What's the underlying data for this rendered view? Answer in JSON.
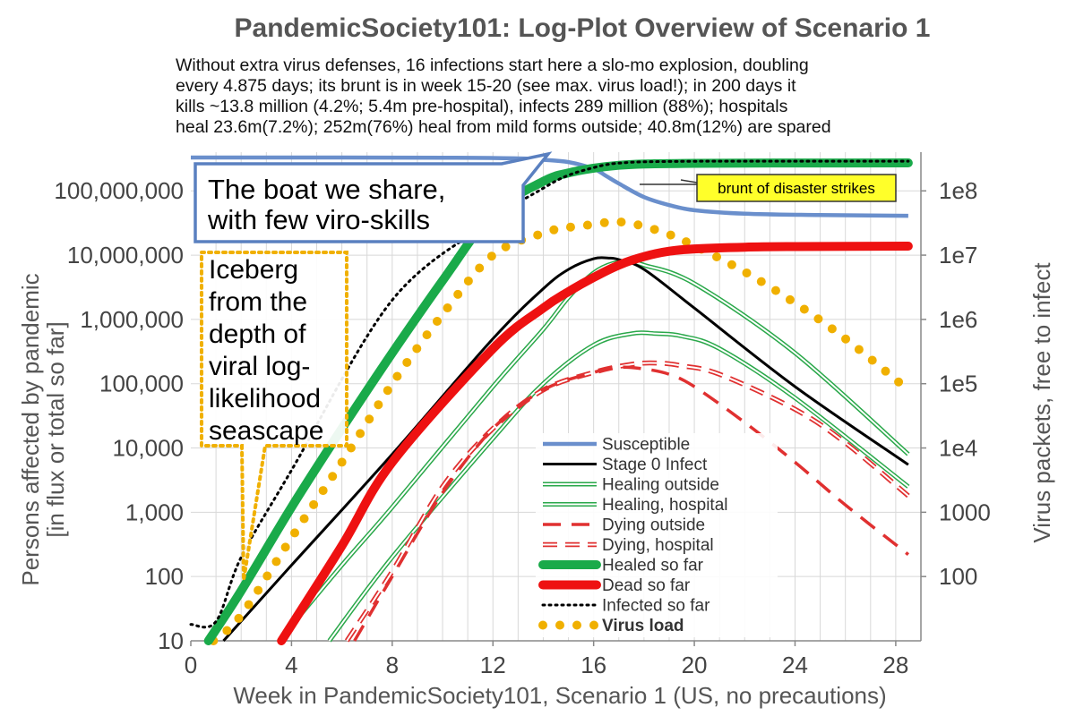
{
  "chart_data": {
    "type": "line",
    "title": "PandemicSociety101: Log-Plot Overview of Scenario 1",
    "subtitle_lines": [
      "Without extra virus defenses, 16 infections start here a slo-mo explosion, doubling",
      "every 4.875 days; its brunt is in week 15-20 (see max. virus load!); in 200 days it",
      "kills ~13.8 million  (4.2%; 5.4m pre-hospital), infects 289 million  (88%); hospitals",
      "heal 23.6m(7.2%); 252m(76%) heal from mild forms outside; 40.8m(12%) are spared"
    ],
    "xlabel": "Week in PandemicSociety101, Scenario 1 (US, no precautions)",
    "ylabel_lines": [
      "Persons affected by pandemic",
      "[in flux or total so far]"
    ],
    "y2label": "Virus packets, free to infect",
    "xlim": [
      0,
      29
    ],
    "ylim": [
      10,
      400000000
    ],
    "y_scale": "log",
    "y2lim": [
      10,
      400000000
    ],
    "y2_scale": "log",
    "grid": true,
    "x_ticks": [
      0,
      4,
      8,
      12,
      16,
      20,
      24,
      28
    ],
    "x_tick_labels": [
      "0",
      "4",
      "8",
      "12",
      "16",
      "20",
      "24",
      "28"
    ],
    "y_ticks": [
      10,
      100,
      1000,
      10000,
      100000,
      1000000,
      10000000,
      100000000
    ],
    "y_tick_labels": [
      "10",
      "100",
      "1,000",
      "10,000",
      "100,000",
      "1,000,000",
      "10,000,000",
      "100,000,000"
    ],
    "y2_ticks": [
      100,
      1000,
      10000,
      100000,
      1000000,
      10000000,
      100000000
    ],
    "y2_tick_labels": [
      "100",
      "1000",
      "1e4",
      "1e5",
      "1e6",
      "1e7",
      "1e8"
    ],
    "legend_position": "bottom-right",
    "series": [
      {
        "name": "Susceptible",
        "style": "line",
        "color": "#6a8fcc",
        "x": [
          0,
          10,
          13,
          14,
          15,
          16,
          16.5,
          17,
          18,
          19,
          20,
          22,
          25,
          28.5
        ],
        "y": [
          330000000,
          328000000,
          320000000,
          305000000,
          280000000,
          220000000,
          170000000,
          130000000,
          80000000,
          60000000,
          50000000,
          44000000,
          42000000,
          41000000
        ]
      },
      {
        "name": "Stage 0 Infect",
        "style": "line",
        "color": "#000000",
        "x": [
          1.3,
          4,
          8,
          12,
          14,
          15,
          16,
          16.6,
          17,
          18,
          20,
          24,
          28.5
        ],
        "y": [
          10,
          150,
          8000,
          500000,
          3000000,
          6000000,
          8800000,
          9000000,
          8500000,
          6000000,
          1500000,
          90000,
          5500
        ]
      },
      {
        "name": "Healing outside",
        "style": "double",
        "color": "#2aa84a",
        "x": [
          3.5,
          6,
          8,
          12,
          14,
          15,
          16,
          16.8,
          17.5,
          18,
          20,
          24,
          28.5
        ],
        "y": [
          10,
          150,
          1200,
          90000,
          700000,
          2200000,
          5300000,
          7500000,
          7800000,
          7000000,
          3600000,
          300000,
          8000
        ]
      },
      {
        "name": "Healing, hospital",
        "style": "double",
        "color": "#2aa84a",
        "x": [
          5.5,
          8,
          12,
          14,
          16,
          17.5,
          18.5,
          19.5,
          21,
          24,
          28.5
        ],
        "y": [
          10,
          200,
          14000,
          100000,
          400000,
          600000,
          600000,
          550000,
          350000,
          60000,
          2500
        ]
      },
      {
        "name": "Dying outside",
        "style": "dashed",
        "color": "#e03030",
        "x": [
          6.5,
          8,
          10,
          12,
          14,
          16,
          17,
          18,
          19,
          20,
          22,
          24,
          26,
          28.5
        ],
        "y": [
          10,
          100,
          2000,
          20000,
          80000,
          150000,
          180000,
          170000,
          140000,
          90000,
          25000,
          6000,
          1300,
          220
        ]
      },
      {
        "name": "Dying, hospital",
        "style": "double-dashed",
        "color": "#e03030",
        "x": [
          6.2,
          8,
          10,
          12,
          14,
          16,
          17.5,
          18.5,
          19.5,
          21,
          24,
          26,
          28.5
        ],
        "y": [
          10,
          120,
          2500,
          20000,
          80000,
          150000,
          200000,
          210000,
          190000,
          140000,
          40000,
          12000,
          1800
        ]
      },
      {
        "name": "Healed so far",
        "style": "thick",
        "color": "#1aaa4a",
        "x": [
          0.7,
          2,
          4,
          6,
          8,
          10,
          12,
          14,
          15,
          16,
          17,
          18,
          20,
          24,
          28.5
        ],
        "y": [
          10,
          60,
          1200,
          20000,
          300000,
          4000000,
          45000000,
          140000000,
          190000000,
          225000000,
          250000000,
          262000000,
          268000000,
          271000000,
          272000000
        ]
      },
      {
        "name": "Dead so far",
        "style": "thick",
        "color": "#ee1111",
        "x": [
          3.6,
          6,
          8,
          12,
          14,
          15,
          16,
          17,
          18,
          19,
          20,
          22,
          24,
          28.5
        ],
        "y": [
          10,
          300,
          6000,
          350000,
          1500000,
          2700000,
          4500000,
          7000000,
          9500000,
          11500000,
          12500000,
          13300000,
          13600000,
          13800000
        ]
      },
      {
        "name": "Infected so far",
        "style": "dotted",
        "color": "#000000",
        "x": [
          0,
          1,
          2,
          4,
          8,
          12,
          14,
          15,
          16,
          16.5,
          17,
          18,
          20,
          24,
          28.5
        ],
        "y": [
          18,
          20,
          200,
          4500,
          2000000,
          35000000,
          110000000,
          175000000,
          230000000,
          255000000,
          270000000,
          283000000,
          288000000,
          289000000,
          289000000
        ]
      },
      {
        "name": "Virus load",
        "style": "dots",
        "color": "#f0b000",
        "axis": "right",
        "x": [
          0.9,
          2,
          4,
          6,
          8,
          10,
          12,
          14,
          15,
          16,
          16.7,
          17.3,
          18,
          19,
          20,
          22,
          24,
          26,
          28.5
        ],
        "y": [
          10,
          25,
          400,
          6000,
          100000,
          1200000,
          10000000,
          22000000,
          27000000,
          30000000,
          33000000,
          32000000,
          28000000,
          21000000,
          14000000,
          5500000,
          1800000,
          500000,
          80000
        ]
      }
    ],
    "annotations": {
      "boat": [
        "The boat we share,",
        "with few viro-skills"
      ],
      "iceberg": [
        "Iceberg",
        "from the",
        "depth of",
        "viral log-",
        "likelihood",
        "seascape"
      ],
      "brunt": "brunt of disaster strikes"
    }
  },
  "colors": {
    "susceptible": "#6a8fcc",
    "healing": "#2aa84a",
    "healed": "#1aaa4a",
    "dead": "#ee1111",
    "dying": "#e03030",
    "virus": "#f0b000",
    "callout_border": "#5a80c0",
    "iceberg_border": "#f0b000",
    "brunt_fill": "#ffff2a"
  }
}
